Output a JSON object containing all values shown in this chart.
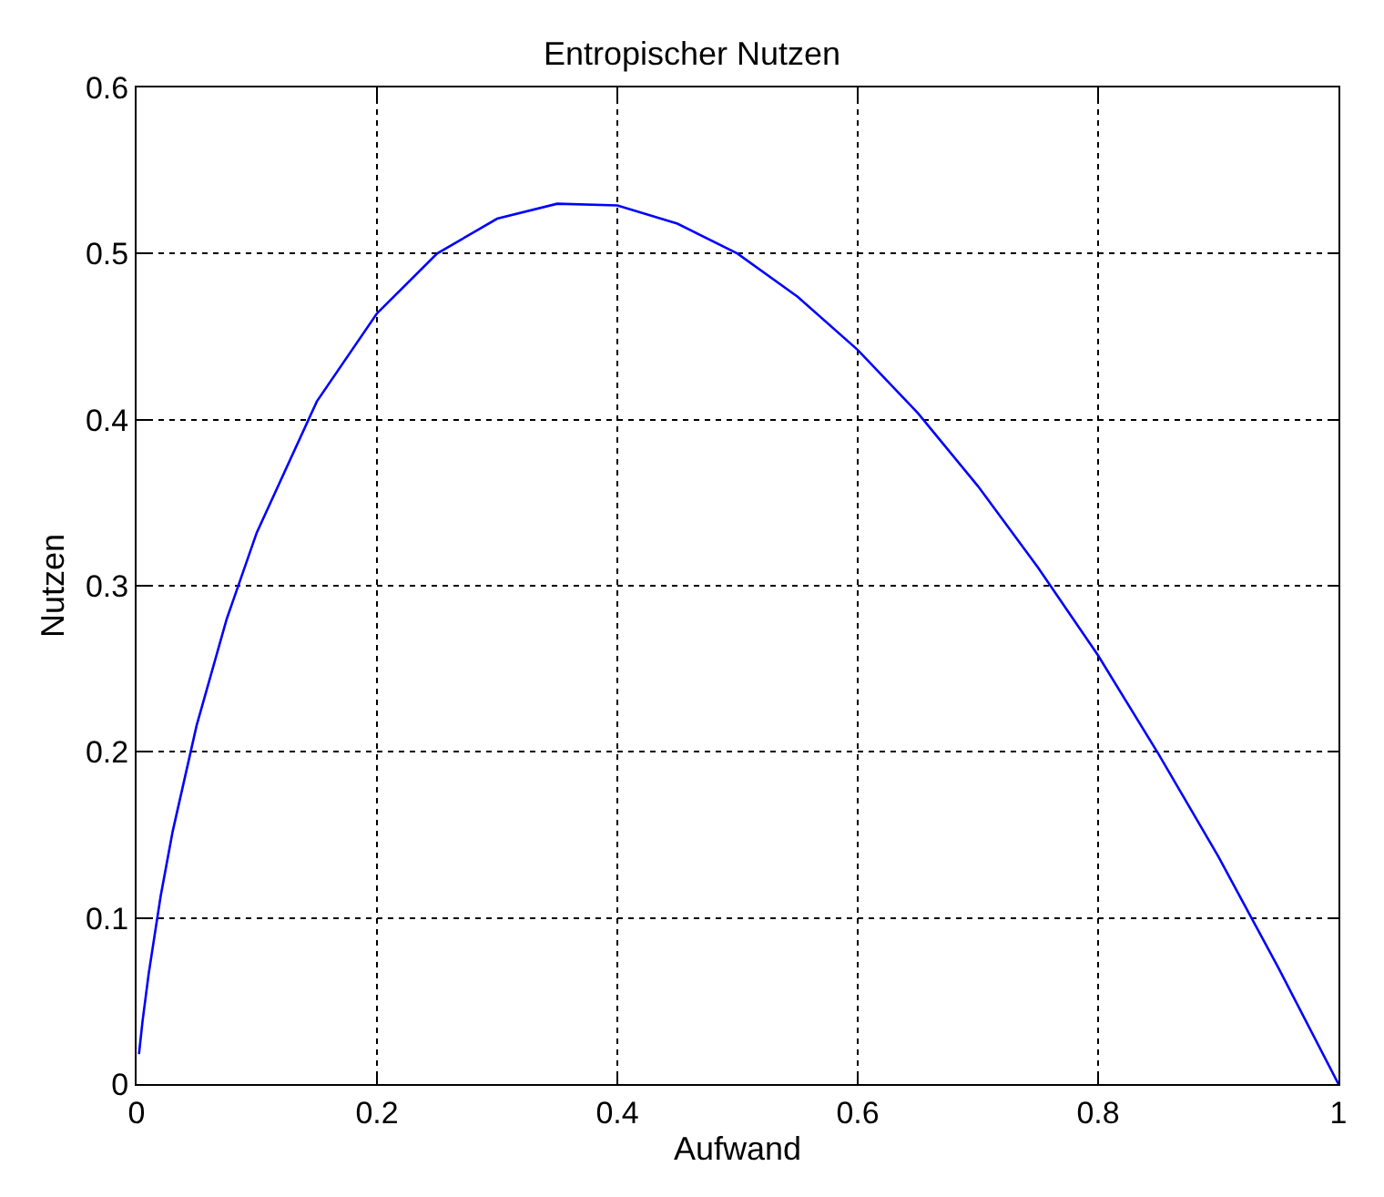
{
  "chart_data": {
    "type": "line",
    "title": "Entropischer Nutzen",
    "xlabel": "Aufwand",
    "ylabel": "Nutzen",
    "x": [
      0.002,
      0.005,
      0.01,
      0.02,
      0.03,
      0.05,
      0.075,
      0.1,
      0.15,
      0.2,
      0.25,
      0.3,
      0.35,
      0.4,
      0.45,
      0.5,
      0.55,
      0.6,
      0.65,
      0.7,
      0.75,
      0.8,
      0.85,
      0.9,
      0.95,
      1.0
    ],
    "series": [
      {
        "color": "#0000ff",
        "values": [
          0.018,
          0.038,
          0.066,
          0.113,
          0.152,
          0.216,
          0.28,
          0.332,
          0.411,
          0.464,
          0.5,
          0.521,
          0.53,
          0.529,
          0.518,
          0.5,
          0.474,
          0.442,
          0.404,
          0.36,
          0.311,
          0.258,
          0.199,
          0.137,
          0.07,
          0.0
        ]
      }
    ],
    "xlim": [
      0,
      1
    ],
    "xticks": [
      0,
      0.2,
      0.4,
      0.6,
      0.8,
      1
    ],
    "ylim": [
      0,
      0.6
    ],
    "yticks": [
      0,
      0.1,
      0.2,
      0.3,
      0.4,
      0.5,
      0.6
    ],
    "grid": true,
    "line_style": "solid",
    "marker": "none",
    "legend": false
  }
}
